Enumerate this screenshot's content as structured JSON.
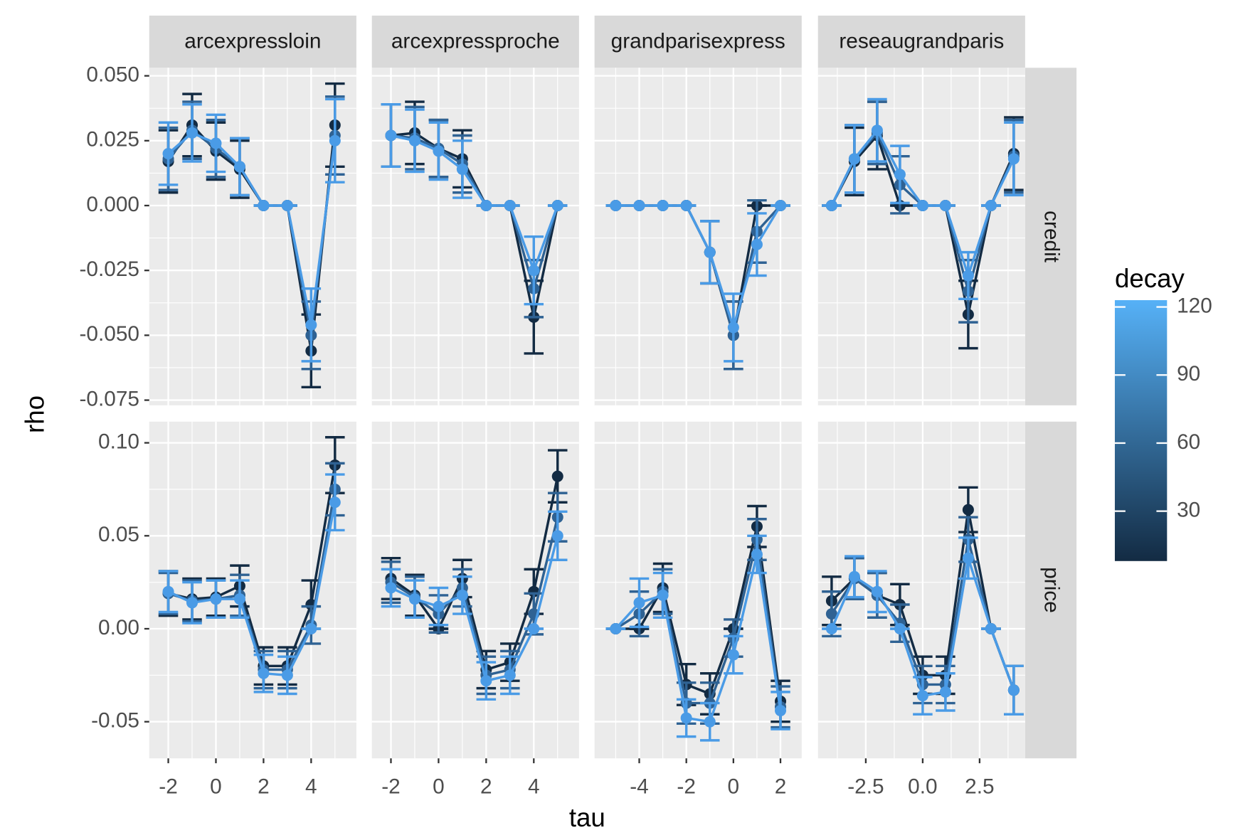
{
  "chart_data": {
    "type": "line",
    "x_label": "tau",
    "y_label": "rho",
    "columns": [
      {
        "name": "arcexpressloin",
        "x": [
          -2,
          -1,
          0,
          1,
          2,
          3,
          4,
          5
        ],
        "xlim": [
          -2.8,
          5.9
        ],
        "xticks": [
          -2,
          0,
          2,
          4
        ]
      },
      {
        "name": "arcexpressproche",
        "x": [
          -2,
          -1,
          0,
          1,
          2,
          3,
          4,
          5
        ],
        "xlim": [
          -2.8,
          5.9
        ],
        "xticks": [
          -2,
          0,
          2,
          4
        ]
      },
      {
        "name": "grandparisexpress",
        "x": [
          -5,
          -4,
          -3,
          -2,
          -1,
          0,
          1,
          2
        ],
        "xlim": [
          -5.9,
          2.9
        ],
        "xticks": [
          -4,
          -2,
          0,
          2
        ]
      },
      {
        "name": "reseaugrandparis",
        "x": [
          -4,
          -3,
          -2,
          -1,
          0,
          1,
          2,
          3,
          4
        ],
        "xlim": [
          -4.6,
          4.5
        ],
        "xticks": [
          {
            "value": -2.5,
            "label": "-2.5"
          },
          {
            "value": 0,
            "label": "0.0"
          },
          {
            "value": 2.5,
            "label": "2.5"
          }
        ]
      }
    ],
    "rows": [
      {
        "name": "credit",
        "ylim": [
          -0.077,
          0.0531
        ],
        "yticks": [
          {
            "value": 0.05,
            "label": "0.050"
          },
          {
            "value": 0.025,
            "label": "0.025"
          },
          {
            "value": 0,
            "label": "0.000"
          },
          {
            "value": -0.025,
            "label": "-0.025"
          },
          {
            "value": -0.05,
            "label": "-0.050"
          },
          {
            "value": -0.075,
            "label": "-0.075"
          }
        ],
        "panels": [
          {
            "series": [
              {
                "color": "#132B43",
                "values": [
                  0.017,
                  0.031,
                  0.021,
                  0.014,
                  0,
                  0,
                  -0.056,
                  0.031
                ],
                "errors": [
                  0.012,
                  0.012,
                  0.011,
                  0.011,
                  0,
                  0,
                  0.014,
                  0.016
                ]
              },
              {
                "color": "#2F6293",
                "values": [
                  0.018,
                  0.029,
                  0.022,
                  0.015,
                  0,
                  0,
                  -0.05,
                  0.027
                ],
                "errors": [
                  0.012,
                  0.011,
                  0.011,
                  0.011,
                  0,
                  0,
                  0.013,
                  0.015
                ]
              },
              {
                "color": "#4A9BE6",
                "values": [
                  0.02,
                  0.028,
                  0.024,
                  0.015,
                  0,
                  0,
                  -0.046,
                  0.025
                ],
                "errors": [
                  0.012,
                  0.011,
                  0.011,
                  0.011,
                  0,
                  0,
                  0.014,
                  0.016
                ]
              }
            ]
          },
          {
            "series": [
              {
                "color": "#132B43",
                "values": [
                  0.027,
                  0.028,
                  0.022,
                  0.018,
                  0,
                  0,
                  -0.043,
                  0
                ],
                "errors": [
                  0.012,
                  0.012,
                  0.011,
                  0.011,
                  0,
                  0,
                  0.014,
                  0
                ]
              },
              {
                "color": "#2F6293",
                "values": [
                  0.027,
                  0.026,
                  0.022,
                  0.016,
                  0,
                  0,
                  -0.032,
                  0
                ],
                "errors": [
                  0.012,
                  0.012,
                  0.011,
                  0.011,
                  0,
                  0,
                  0.011,
                  0
                ]
              },
              {
                "color": "#4A9BE6",
                "values": [
                  0.027,
                  0.025,
                  0.021,
                  0.014,
                  0,
                  0,
                  -0.025,
                  0
                ],
                "errors": [
                  0.012,
                  0.012,
                  0.011,
                  0.011,
                  0,
                  0,
                  0.013,
                  0
                ]
              }
            ]
          },
          {
            "series": [
              {
                "color": "#132B43",
                "values": [
                  0,
                  0,
                  0,
                  0,
                  -0.018,
                  -0.05,
                  0,
                  0
                ],
                "errors": [
                  0,
                  0,
                  0,
                  0,
                  0.012,
                  0.013,
                  0,
                  0
                ]
              },
              {
                "color": "#2F6293",
                "values": [
                  0,
                  0,
                  0,
                  0,
                  -0.018,
                  -0.05,
                  -0.01,
                  0
                ],
                "errors": [
                  0,
                  0,
                  0,
                  0,
                  0.012,
                  0.013,
                  0.012,
                  0
                ]
              },
              {
                "color": "#4A9BE6",
                "values": [
                  0,
                  0,
                  0,
                  0,
                  -0.018,
                  -0.047,
                  -0.015,
                  0
                ],
                "errors": [
                  0,
                  0,
                  0,
                  0,
                  0.012,
                  0.013,
                  0.012,
                  0
                ]
              }
            ]
          },
          {
            "series": [
              {
                "color": "#132B43",
                "values": [
                  0,
                  0.017,
                  0.027,
                  0,
                  0,
                  0,
                  -0.042,
                  0,
                  0.02
                ],
                "errors": [
                  0,
                  0.013,
                  0.013,
                  0,
                  0,
                  0,
                  0.013,
                  0,
                  0.014
                ]
              },
              {
                "color": "#2F6293",
                "values": [
                  0,
                  0.018,
                  0.028,
                  0.008,
                  0,
                  0,
                  -0.033,
                  0,
                  0.019
                ],
                "errors": [
                  0,
                  0.013,
                  0.012,
                  0.011,
                  0,
                  0,
                  0.012,
                  0,
                  0.014
                ]
              },
              {
                "color": "#4A9BE6",
                "values": [
                  0,
                  0.018,
                  0.029,
                  0.012,
                  0,
                  0,
                  -0.027,
                  0,
                  0.018
                ],
                "errors": [
                  0,
                  0.013,
                  0.012,
                  0.011,
                  0,
                  0,
                  0.009,
                  0,
                  0.014
                ]
              }
            ]
          }
        ]
      },
      {
        "name": "price",
        "ylim": [
          -0.0697,
          0.1114
        ],
        "yticks": [
          {
            "value": 0.1,
            "label": "0.10"
          },
          0.05,
          {
            "value": 0,
            "label": "0.00"
          },
          -0.05
        ],
        "panels": [
          {
            "series": [
              {
                "color": "#132B43",
                "values": [
                  0.019,
                  0.016,
                  0.017,
                  0.023,
                  -0.02,
                  -0.02,
                  0.013,
                  0.088
                ],
                "errors": [
                  0.012,
                  0.011,
                  0.01,
                  0.011,
                  0.01,
                  0.01,
                  0.013,
                  0.015
                ]
              },
              {
                "color": "#2F6293",
                "values": [
                  0.019,
                  0.015,
                  0.016,
                  0.018,
                  -0.022,
                  -0.022,
                  0.002,
                  0.075
                ],
                "errors": [
                  0.011,
                  0.011,
                  0.01,
                  0.011,
                  0.01,
                  0.01,
                  0.01,
                  0.014
                ]
              },
              {
                "color": "#4A9BE6",
                "values": [
                  0.02,
                  0.014,
                  0.016,
                  0.016,
                  -0.024,
                  -0.025,
                  0,
                  0.068
                ],
                "errors": [
                  0.011,
                  0.011,
                  0.01,
                  0.01,
                  0.01,
                  0.01,
                  0,
                  0.015
                ]
              }
            ]
          },
          {
            "series": [
              {
                "color": "#132B43",
                "values": [
                  0.027,
                  0.018,
                  0,
                  0.027,
                  -0.022,
                  -0.018,
                  0.02,
                  0.082
                ],
                "errors": [
                  0.011,
                  0.011,
                  0,
                  0.01,
                  0.01,
                  0.01,
                  0.012,
                  0.014
                ]
              },
              {
                "color": "#2F6293",
                "values": [
                  0.025,
                  0.017,
                  0.008,
                  0.022,
                  -0.025,
                  -0.022,
                  0.008,
                  0.06
                ],
                "errors": [
                  0.011,
                  0.011,
                  0.01,
                  0.01,
                  0.01,
                  0.01,
                  0.011,
                  0.013
                ]
              },
              {
                "color": "#4A9BE6",
                "values": [
                  0.022,
                  0.016,
                  0.012,
                  0.018,
                  -0.028,
                  -0.025,
                  0,
                  0.05
                ],
                "errors": [
                  0.01,
                  0.01,
                  0.01,
                  0.01,
                  0.01,
                  0.01,
                  0,
                  0.013
                ]
              }
            ]
          },
          {
            "series": [
              {
                "color": "#132B43",
                "values": [
                  0,
                  0,
                  0.022,
                  -0.03,
                  -0.035,
                  0,
                  0.055,
                  -0.039
                ],
                "errors": [
                  0,
                  0,
                  0.013,
                  0.011,
                  0.011,
                  0,
                  0.011,
                  0.011
                ]
              },
              {
                "color": "#2F6293",
                "values": [
                  0,
                  0.008,
                  0.02,
                  -0.04,
                  -0.04,
                  -0.005,
                  0.048,
                  -0.042
                ],
                "errors": [
                  0,
                  0.012,
                  0.012,
                  0.011,
                  0.011,
                  0.01,
                  0.011,
                  0.011
                ]
              },
              {
                "color": "#4A9BE6",
                "values": [
                  0,
                  0.014,
                  0.018,
                  -0.048,
                  -0.05,
                  -0.014,
                  0.04,
                  -0.044
                ],
                "errors": [
                  0,
                  0.013,
                  0.012,
                  0.01,
                  0.01,
                  0.01,
                  0.01,
                  0.01
                ]
              }
            ]
          },
          {
            "series": [
              {
                "color": "#132B43",
                "values": [
                  0.015,
                  0.027,
                  0.018,
                  0.013,
                  -0.025,
                  -0.025,
                  0.064,
                  0,
                  -0.033
                ],
                "errors": [
                  0.013,
                  0.011,
                  0.012,
                  0.011,
                  0.01,
                  0.01,
                  0.012,
                  0,
                  0.013
                ]
              },
              {
                "color": "#2F6293",
                "values": [
                  0.008,
                  0.027,
                  0.018,
                  0.003,
                  -0.03,
                  -0.03,
                  0.048,
                  0,
                  -0.033
                ],
                "errors": [
                  0.012,
                  0.011,
                  0.012,
                  0.01,
                  0.01,
                  0.01,
                  0.012,
                  0,
                  0.013
                ]
              },
              {
                "color": "#4A9BE6",
                "values": [
                  0,
                  0.028,
                  0.02,
                  0,
                  -0.036,
                  -0.034,
                  0.038,
                  0,
                  -0.033
                ],
                "errors": [
                  0,
                  0.011,
                  0.011,
                  0,
                  0.01,
                  0.01,
                  0.011,
                  0,
                  0.013
                ]
              }
            ]
          }
        ]
      }
    ],
    "legend": {
      "title": "decay",
      "lim": [
        8,
        123
      ],
      "ticks": [
        30,
        60,
        90,
        120
      ],
      "colors": [
        "#132B43",
        "#56B1F7"
      ]
    }
  }
}
